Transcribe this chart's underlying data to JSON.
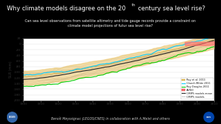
{
  "title_start": "Why climate models disagree on the 20",
  "title_super": "th",
  "title_end": " century sea level rise?",
  "subtitle": "Can sea level observations from satellite altimetry and tide gauge records provide a constraint on\nclimate model projections of futur sea level rise?",
  "background_color": "#000000",
  "plot_bg_color": "#ffffff",
  "ylabel": "SLR (mm)",
  "xlim": [
    1900,
    2010
  ],
  "ylim": [
    -200,
    20
  ],
  "yticks": [
    20,
    0,
    -20,
    -40,
    -60,
    -80,
    -100,
    -120,
    -140,
    -160,
    -180,
    -200
  ],
  "xticks": [
    1900,
    1910,
    1920,
    1930,
    1940,
    1950,
    1960,
    1970,
    1980,
    1990,
    2000,
    2010
  ],
  "legend_labels": [
    "Ray et al. 2011",
    "Church White 2011",
    "Ray Douglas 2011",
    "AVISO",
    "CMIP5 models mean",
    "CMIP5 models"
  ],
  "ray_color": "#e8c060",
  "church_color": "#00ccff",
  "ray_douglas_color": "#00cc00",
  "aviso_color": "#ff7070",
  "cmip5_mean_color": "#222222",
  "cmip5_color": "#bbbbbb",
  "footer": "Benoît Meyssignac (LEGOS/CNES) in collaboration with A.Melet and others",
  "legos_logo_color": "#4488cc",
  "cnes_logo_color": "#0055aa"
}
